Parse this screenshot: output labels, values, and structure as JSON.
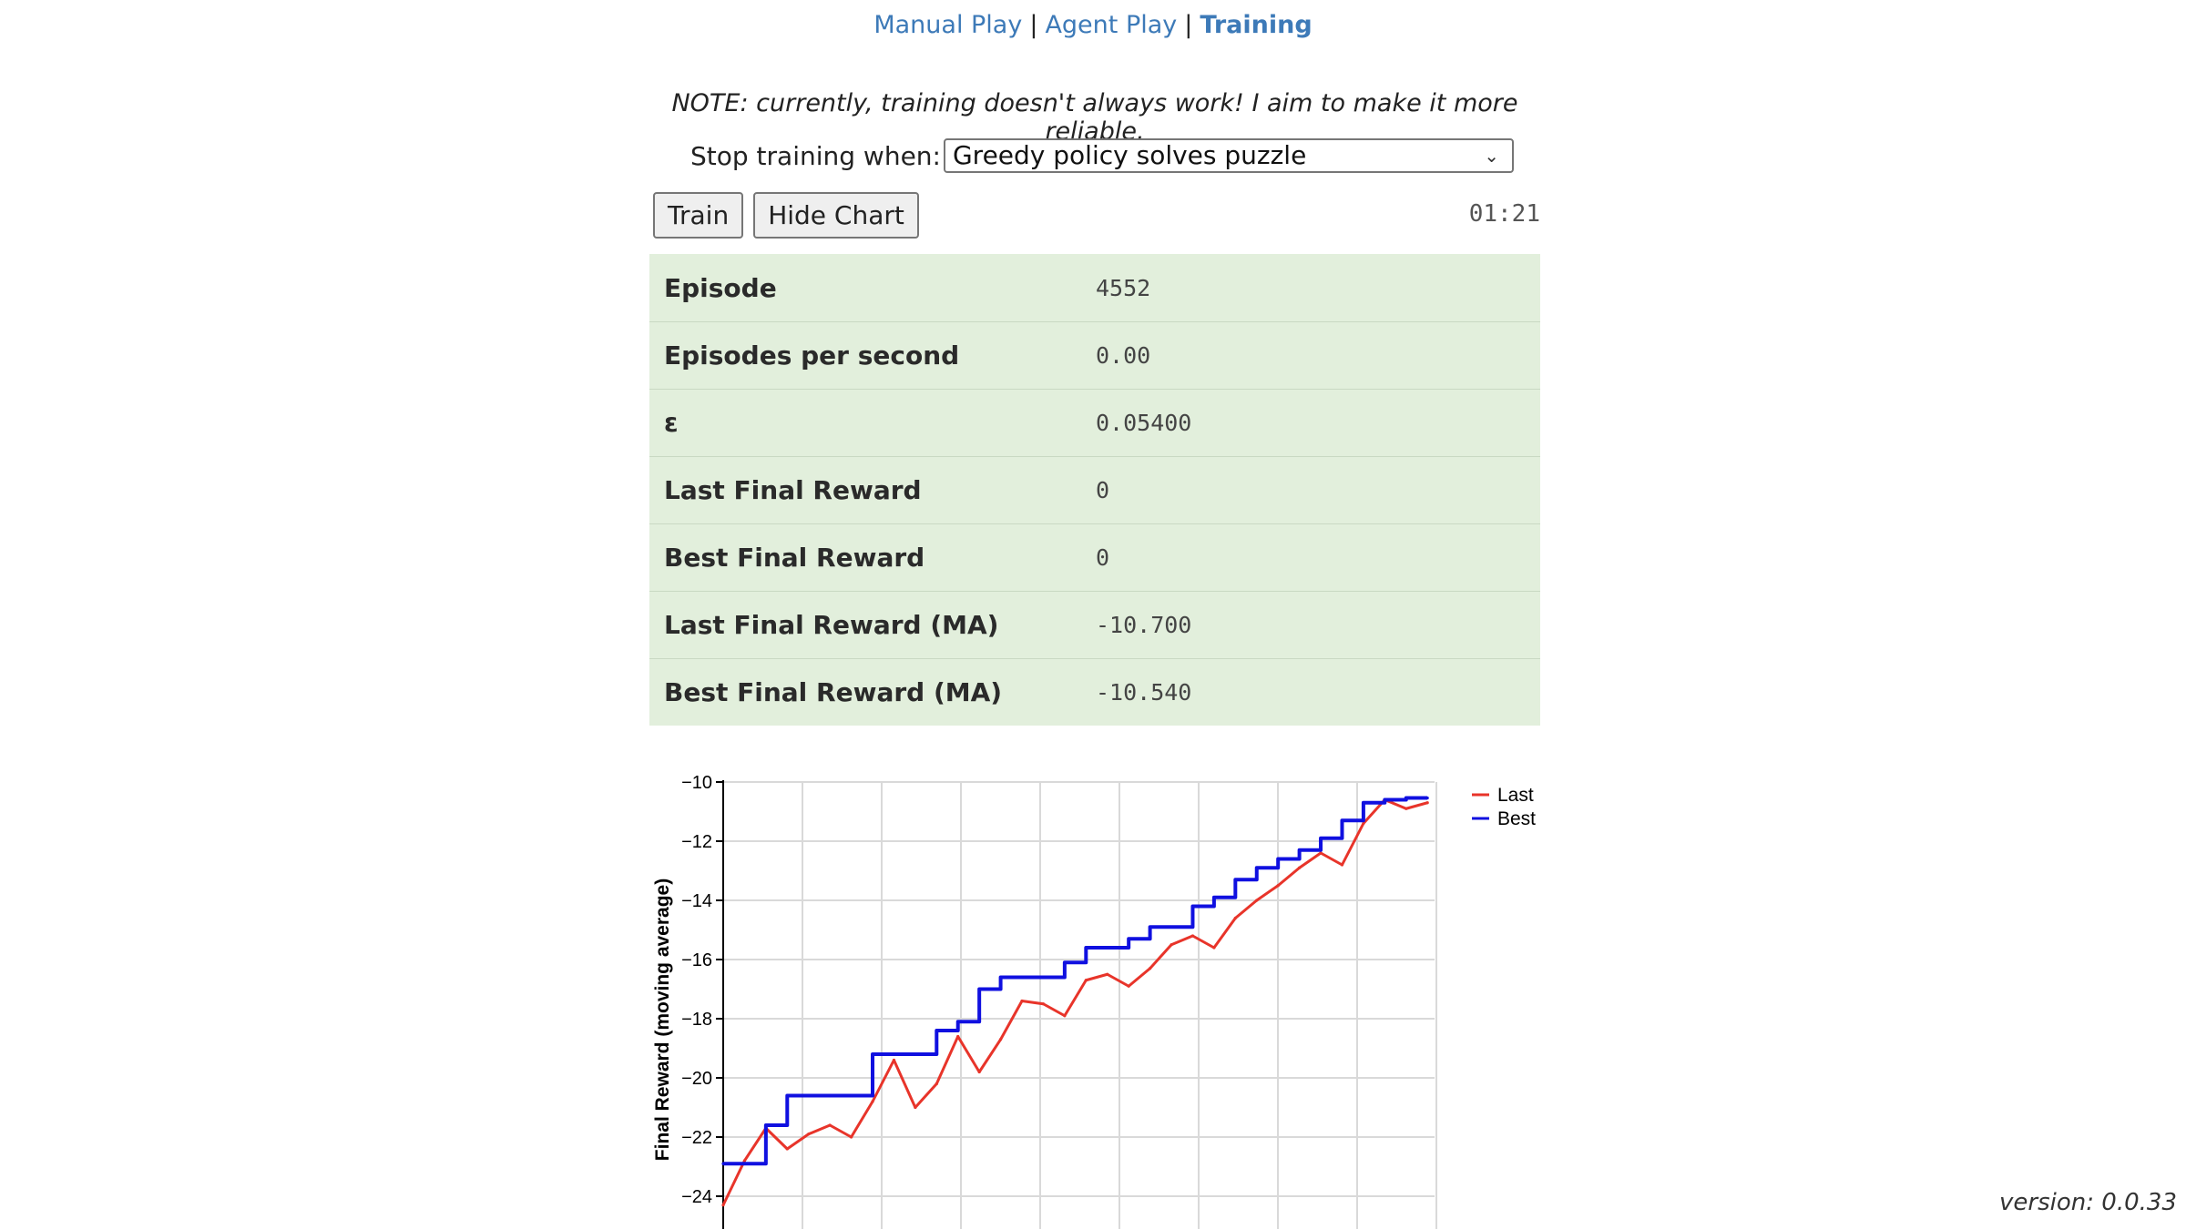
{
  "nav": {
    "manual_play": "Manual Play",
    "agent_play": "Agent Play",
    "training": "Training",
    "separator": "|"
  },
  "note": "NOTE: currently, training doesn't always work! I aim to make it more reliable.",
  "stop": {
    "label": "Stop training when:",
    "selected": "Greedy policy solves puzzle"
  },
  "buttons": {
    "train": "Train",
    "hide_chart": "Hide Chart"
  },
  "timer": "01:21",
  "stats": [
    {
      "label": "Episode",
      "value": "4552"
    },
    {
      "label": "Episodes per second",
      "value": "0.00"
    },
    {
      "label": "ε",
      "value": "0.05400"
    },
    {
      "label": "Last Final Reward",
      "value": "0"
    },
    {
      "label": "Best Final Reward",
      "value": "0"
    },
    {
      "label": "Last Final Reward (MA)",
      "value": "-10.700"
    },
    {
      "label": "Best Final Reward (MA)",
      "value": "-10.540"
    }
  ],
  "version": "version: 0.0.33",
  "colors": {
    "link": "#3d7ab8",
    "stats_bg": "#e2efdc",
    "last": "#e8342a",
    "best": "#1010e0"
  },
  "chart_data": {
    "type": "line",
    "ylabel": "Final Reward (moving average)",
    "xlabel": "",
    "ylim": [
      -25,
      -10
    ],
    "yticks": [
      -10,
      -12,
      -14,
      -16,
      -18,
      -20,
      -22,
      -24
    ],
    "ytick_labels": [
      "−10",
      "−12",
      "−14",
      "−16",
      "−18",
      "−20",
      "−22",
      "−24"
    ],
    "grid": true,
    "legend": "top-right",
    "x": [
      0,
      0.03,
      0.06,
      0.09,
      0.12,
      0.15,
      0.18,
      0.21,
      0.24,
      0.27,
      0.3,
      0.33,
      0.36,
      0.39,
      0.42,
      0.45,
      0.48,
      0.51,
      0.54,
      0.57,
      0.6,
      0.63,
      0.66,
      0.69,
      0.72,
      0.75,
      0.78,
      0.81,
      0.84,
      0.87,
      0.9,
      0.93,
      0.96,
      0.99
    ],
    "series": [
      {
        "name": "Last",
        "values": [
          -24.3,
          -22.8,
          -21.7,
          -22.4,
          -21.9,
          -21.6,
          -22.0,
          -20.8,
          -19.4,
          -21.0,
          -20.2,
          -18.6,
          -19.8,
          -18.7,
          -17.4,
          -17.5,
          -17.9,
          -16.7,
          -16.5,
          -16.9,
          -16.3,
          -15.5,
          -15.2,
          -15.6,
          -14.6,
          -14.0,
          -13.5,
          -12.9,
          -12.4,
          -12.8,
          -11.4,
          -10.6,
          -10.9,
          -10.7
        ]
      },
      {
        "name": "Best",
        "values": [
          -22.9,
          -22.9,
          -21.6,
          -20.6,
          -20.6,
          -20.6,
          -20.6,
          -19.2,
          -19.2,
          -19.2,
          -18.4,
          -18.1,
          -17.0,
          -16.6,
          -16.6,
          -16.6,
          -16.1,
          -15.6,
          -15.6,
          -15.3,
          -14.9,
          -14.9,
          -14.2,
          -13.9,
          -13.3,
          -12.9,
          -12.6,
          -12.3,
          -11.9,
          -11.3,
          -10.7,
          -10.6,
          -10.54,
          -10.54
        ]
      }
    ]
  }
}
